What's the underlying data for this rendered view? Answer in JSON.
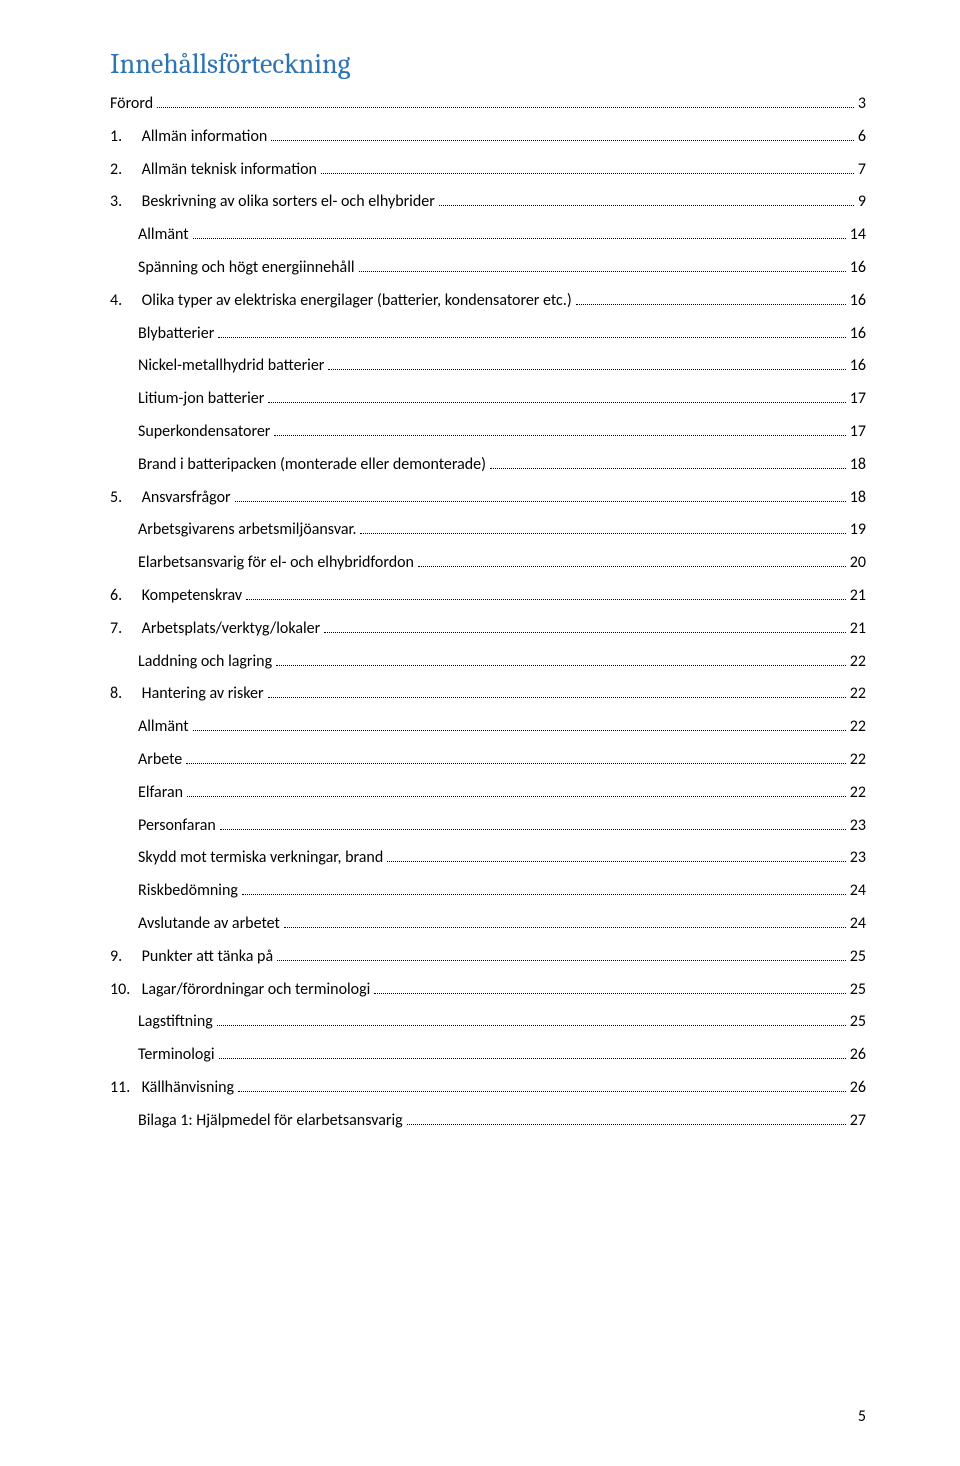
{
  "title": "Innehållsförteckning",
  "title_color": "#2e74b5",
  "text_color": "#000000",
  "font_body": "Calibri, 'Segoe UI', Arial, sans-serif",
  "font_title": "Cambria, Georgia, serif",
  "title_fontsize": 28,
  "row_fontsize": 16,
  "page_number": "5",
  "entries": [
    {
      "level": 0,
      "num": "",
      "label": "Förord",
      "page": "3"
    },
    {
      "level": 0,
      "num": "1.",
      "label": "Allmän information",
      "page": "6"
    },
    {
      "level": 0,
      "num": "2.",
      "label": "Allmän teknisk information",
      "page": "7"
    },
    {
      "level": 0,
      "num": "3.",
      "label": "Beskrivning av olika sorters el- och elhybrider",
      "page": "9"
    },
    {
      "level": 1,
      "num": "",
      "label": "Allmänt",
      "page": "14"
    },
    {
      "level": 1,
      "num": "",
      "label": "Spänning och högt energiinnehåll",
      "page": "16"
    },
    {
      "level": 0,
      "num": "4.",
      "label": "Olika typer av elektriska energilager (batterier, kondensatorer etc.)",
      "page": "16"
    },
    {
      "level": 1,
      "num": "",
      "label": "Blybatterier",
      "page": "16"
    },
    {
      "level": 1,
      "num": "",
      "label": "Nickel-metallhydrid batterier",
      "page": "16"
    },
    {
      "level": 1,
      "num": "",
      "label": "Litium-jon batterier",
      "page": "17"
    },
    {
      "level": 1,
      "num": "",
      "label": "Superkondensatorer",
      "page": "17"
    },
    {
      "level": 1,
      "num": "",
      "label": "Brand i batteripacken (monterade eller demonterade)",
      "page": "18"
    },
    {
      "level": 0,
      "num": "5.",
      "label": "Ansvarsfrågor",
      "page": "18"
    },
    {
      "level": 1,
      "num": "",
      "label": "Arbetsgivarens arbetsmiljöansvar.",
      "page": "19"
    },
    {
      "level": 1,
      "num": "",
      "label": "Elarbetsansvarig för el- och elhybridfordon",
      "page": "20"
    },
    {
      "level": 0,
      "num": "6.",
      "label": "Kompetenskrav",
      "page": "21"
    },
    {
      "level": 0,
      "num": "7.",
      "label": "Arbetsplats/verktyg/lokaler",
      "page": "21"
    },
    {
      "level": 1,
      "num": "",
      "label": "Laddning och lagring",
      "page": "22"
    },
    {
      "level": 0,
      "num": "8.",
      "label": "Hantering av risker",
      "page": "22"
    },
    {
      "level": 1,
      "num": "",
      "label": "Allmänt",
      "page": "22"
    },
    {
      "level": 1,
      "num": "",
      "label": "Arbete",
      "page": "22"
    },
    {
      "level": 1,
      "num": "",
      "label": "Elfaran",
      "page": "22"
    },
    {
      "level": 1,
      "num": "",
      "label": "Personfaran",
      "page": "23"
    },
    {
      "level": 1,
      "num": "",
      "label": "Skydd mot termiska verkningar, brand",
      "page": "23"
    },
    {
      "level": 1,
      "num": "",
      "label": "Riskbedömning",
      "page": "24"
    },
    {
      "level": 1,
      "num": "",
      "label": "Avslutande av arbetet",
      "page": "24"
    },
    {
      "level": 0,
      "num": "9.",
      "label": "Punkter att tänka på",
      "page": "25"
    },
    {
      "level": 0,
      "num": "10.",
      "label": "Lagar/förordningar och terminologi",
      "page": "25"
    },
    {
      "level": 1,
      "num": "",
      "label": "Lagstiftning",
      "page": "25"
    },
    {
      "level": 1,
      "num": "",
      "label": "Terminologi",
      "page": "26"
    },
    {
      "level": 0,
      "num": "11.",
      "label": "Källhänvisning",
      "page": "26"
    },
    {
      "level": 1,
      "num": "",
      "label": "Bilaga 1: Hjälpmedel för elarbetsansvarig",
      "page": "27"
    }
  ]
}
